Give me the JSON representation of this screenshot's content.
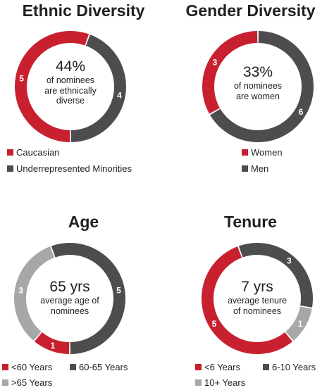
{
  "colors": {
    "red": "#c8202f",
    "dark": "#4d4d4f",
    "light": "#a7a7a9"
  },
  "chart_data": [
    {
      "type": "pie",
      "title": "Ethnic Diversity",
      "center_big": "44%",
      "center_small": [
        "of nominees",
        "are ethnically",
        "diverse"
      ],
      "series": [
        {
          "name": "Caucasian",
          "value": 5,
          "color": "#c8202f"
        },
        {
          "name": "Underrepresented Minorities",
          "value": 4,
          "color": "#4d4d4f"
        }
      ]
    },
    {
      "type": "pie",
      "title": "Gender Diversity",
      "center_big": "33%",
      "center_small": [
        "of nominees",
        "are women"
      ],
      "series": [
        {
          "name": "Women",
          "value": 3,
          "color": "#c8202f"
        },
        {
          "name": "Men",
          "value": 6,
          "color": "#4d4d4f"
        }
      ]
    },
    {
      "type": "pie",
      "title": "Age",
      "center_big": "65 yrs",
      "center_small": [
        "average age of",
        "nominees"
      ],
      "series": [
        {
          "name": "<60 Years",
          "value": 1,
          "color": "#c8202f"
        },
        {
          "name": "60-65 Years",
          "value": 5,
          "color": "#4d4d4f"
        },
        {
          "name": ">65 Years",
          "value": 3,
          "color": "#a7a7a9"
        }
      ]
    },
    {
      "type": "pie",
      "title": "Tenure",
      "center_big": "7 yrs",
      "center_small": [
        "average tenure",
        "of nominees"
      ],
      "series": [
        {
          "name": "<6 Years",
          "value": 5,
          "color": "#c8202f"
        },
        {
          "name": "6-10 Years",
          "value": 3,
          "color": "#4d4d4f"
        },
        {
          "name": "10+ Years",
          "value": 1,
          "color": "#a7a7a9"
        }
      ]
    }
  ]
}
